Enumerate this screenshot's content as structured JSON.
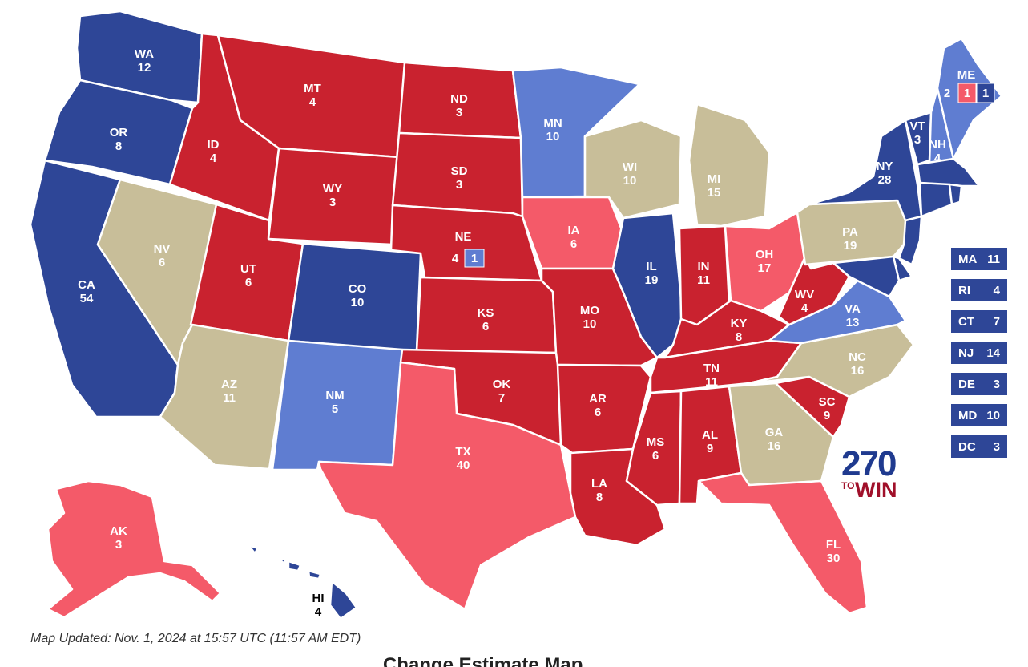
{
  "colors": {
    "safe_dem": "#2e4697",
    "lean_dem": "#5f7dd1",
    "safe_rep": "#c9222f",
    "lean_rep": "#f45a69",
    "tossup": "#c8be99"
  },
  "states": {
    "WA": {
      "abbr": "WA",
      "ev": "12",
      "rating": "safe_dem"
    },
    "OR": {
      "abbr": "OR",
      "ev": "8",
      "rating": "safe_dem"
    },
    "CA": {
      "abbr": "CA",
      "ev": "54",
      "rating": "safe_dem"
    },
    "NV": {
      "abbr": "NV",
      "ev": "6",
      "rating": "tossup"
    },
    "ID": {
      "abbr": "ID",
      "ev": "4",
      "rating": "safe_rep"
    },
    "MT": {
      "abbr": "MT",
      "ev": "4",
      "rating": "safe_rep"
    },
    "WY": {
      "abbr": "WY",
      "ev": "3",
      "rating": "safe_rep"
    },
    "UT": {
      "abbr": "UT",
      "ev": "6",
      "rating": "safe_rep"
    },
    "AZ": {
      "abbr": "AZ",
      "ev": "11",
      "rating": "tossup"
    },
    "CO": {
      "abbr": "CO",
      "ev": "10",
      "rating": "safe_dem"
    },
    "NM": {
      "abbr": "NM",
      "ev": "5",
      "rating": "lean_dem"
    },
    "ND": {
      "abbr": "ND",
      "ev": "3",
      "rating": "safe_rep"
    },
    "SD": {
      "abbr": "SD",
      "ev": "3",
      "rating": "safe_rep"
    },
    "NE": {
      "abbr": "NE",
      "ev": "4",
      "rating": "safe_rep",
      "district_ev": "1"
    },
    "KS": {
      "abbr": "KS",
      "ev": "6",
      "rating": "safe_rep"
    },
    "OK": {
      "abbr": "OK",
      "ev": "7",
      "rating": "safe_rep"
    },
    "TX": {
      "abbr": "TX",
      "ev": "40",
      "rating": "lean_rep"
    },
    "MN": {
      "abbr": "MN",
      "ev": "10",
      "rating": "lean_dem"
    },
    "IA": {
      "abbr": "IA",
      "ev": "6",
      "rating": "lean_rep"
    },
    "MO": {
      "abbr": "MO",
      "ev": "10",
      "rating": "safe_rep"
    },
    "AR": {
      "abbr": "AR",
      "ev": "6",
      "rating": "safe_rep"
    },
    "LA": {
      "abbr": "LA",
      "ev": "8",
      "rating": "safe_rep"
    },
    "WI": {
      "abbr": "WI",
      "ev": "10",
      "rating": "tossup"
    },
    "IL": {
      "abbr": "IL",
      "ev": "19",
      "rating": "safe_dem"
    },
    "MI": {
      "abbr": "MI",
      "ev": "15",
      "rating": "tossup"
    },
    "IN": {
      "abbr": "IN",
      "ev": "11",
      "rating": "safe_rep"
    },
    "OH": {
      "abbr": "OH",
      "ev": "17",
      "rating": "lean_rep"
    },
    "KY": {
      "abbr": "KY",
      "ev": "8",
      "rating": "safe_rep"
    },
    "TN": {
      "abbr": "TN",
      "ev": "11",
      "rating": "safe_rep"
    },
    "MS": {
      "abbr": "MS",
      "ev": "6",
      "rating": "safe_rep"
    },
    "AL": {
      "abbr": "AL",
      "ev": "9",
      "rating": "safe_rep"
    },
    "GA": {
      "abbr": "GA",
      "ev": "16",
      "rating": "tossup"
    },
    "FL": {
      "abbr": "FL",
      "ev": "30",
      "rating": "lean_rep"
    },
    "SC": {
      "abbr": "SC",
      "ev": "9",
      "rating": "safe_rep"
    },
    "NC": {
      "abbr": "NC",
      "ev": "16",
      "rating": "tossup"
    },
    "VA": {
      "abbr": "VA",
      "ev": "13",
      "rating": "lean_dem"
    },
    "WV": {
      "abbr": "WV",
      "ev": "4",
      "rating": "safe_rep"
    },
    "PA": {
      "abbr": "PA",
      "ev": "19",
      "rating": "tossup"
    },
    "NY": {
      "abbr": "NY",
      "ev": "28",
      "rating": "safe_dem"
    },
    "VT": {
      "abbr": "VT",
      "ev": "3",
      "rating": "safe_dem"
    },
    "NH": {
      "abbr": "NH",
      "ev": "4",
      "rating": "lean_dem"
    },
    "ME": {
      "abbr": "ME",
      "ev": "2",
      "rating": "lean_dem",
      "district1_ev": "1",
      "district2_ev": "1"
    },
    "AK": {
      "abbr": "AK",
      "ev": "3",
      "rating": "lean_rep"
    },
    "HI": {
      "abbr": "HI",
      "ev": "4",
      "rating": "safe_dem"
    }
  },
  "small_states": [
    {
      "abbr": "MA",
      "ev": "11",
      "rating": "safe_dem"
    },
    {
      "abbr": "RI",
      "ev": "4",
      "rating": "safe_dem"
    },
    {
      "abbr": "CT",
      "ev": "7",
      "rating": "safe_dem"
    },
    {
      "abbr": "NJ",
      "ev": "14",
      "rating": "safe_dem"
    },
    {
      "abbr": "DE",
      "ev": "3",
      "rating": "safe_dem"
    },
    {
      "abbr": "MD",
      "ev": "10",
      "rating": "safe_dem"
    },
    {
      "abbr": "DC",
      "ev": "3",
      "rating": "safe_dem"
    }
  ],
  "logo": {
    "number": "270",
    "to": "TO",
    "win": "WIN"
  },
  "updated_text": "Map Updated: Nov. 1, 2024 at 15:57 UTC (11:57 AM EDT)",
  "below_title": "Change Estimate Map"
}
